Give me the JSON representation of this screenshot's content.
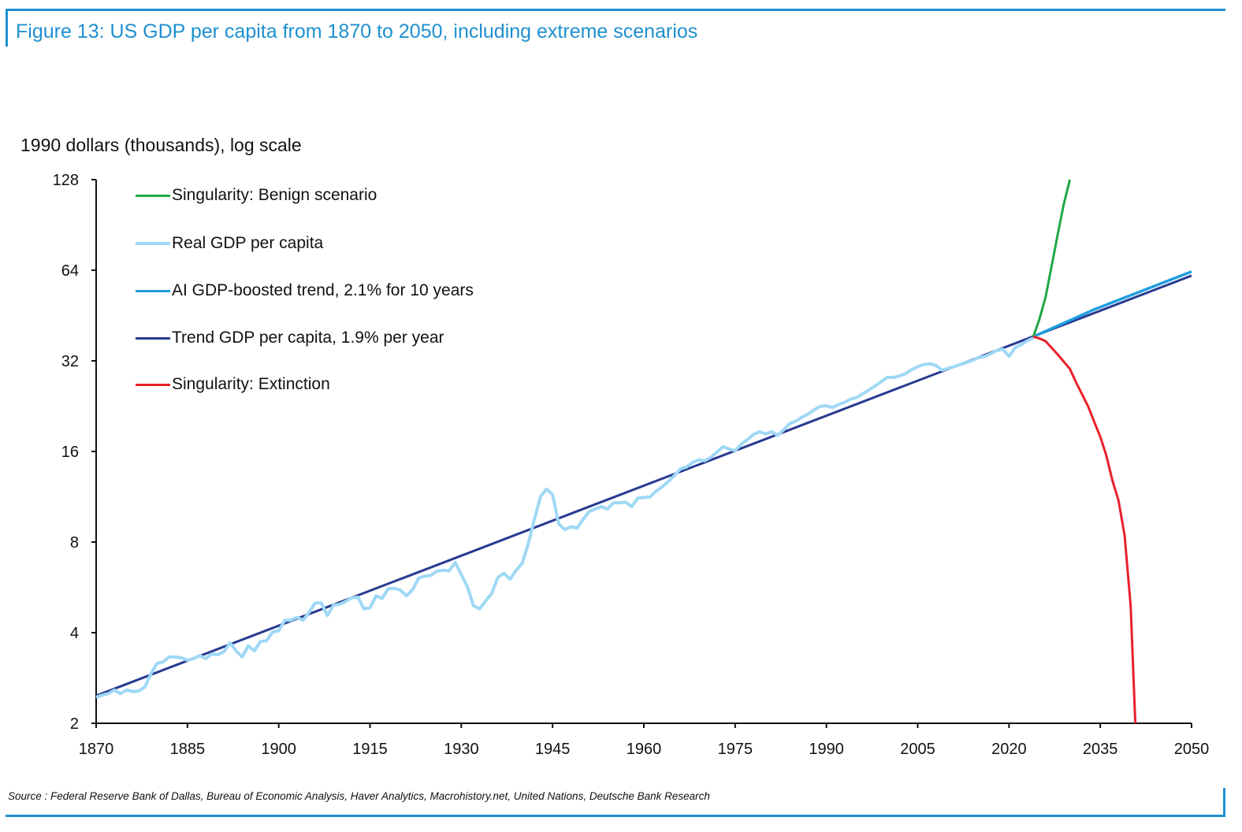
{
  "title": "Figure 13: US GDP per capita from 1870 to 2050, including extreme scenarios",
  "source": "Source : Federal Reserve Bank of Dallas, Bureau of Economic Analysis, Haver Analytics, Macrohistory.net, United Nations, Deutsche Bank Research",
  "colors": {
    "frame": "#1e90d0",
    "title": "#1e90d0"
  },
  "chart_data": {
    "type": "line",
    "title": "Figure 13: US GDP per capita from 1870 to 2050, including extreme scenarios",
    "ylabel": "1990 dollars (thousands), log scale",
    "xlabel": "",
    "y_scale": "log2",
    "ylim": [
      2,
      128
    ],
    "xlim": [
      1870,
      2050
    ],
    "y_ticks": [
      2,
      4,
      8,
      16,
      32,
      64,
      128
    ],
    "x_ticks": [
      1870,
      1885,
      1900,
      1915,
      1930,
      1945,
      1960,
      1975,
      1990,
      2005,
      2020,
      2035,
      2050
    ],
    "grid": false,
    "legend_position": "top-left",
    "series": [
      {
        "name": "Singularity: Benign scenario",
        "color": "#1fa846",
        "x": [
          2024,
          2025,
          2026,
          2027,
          2028,
          2029,
          2030
        ],
        "y": [
          38.5,
          44,
          52,
          66,
          84,
          106,
          128
        ]
      },
      {
        "name": "Real GDP per capita",
        "color": "#9fd8f6",
        "x": [
          1870,
          1871,
          1872,
          1873,
          1874,
          1875,
          1876,
          1877,
          1878,
          1879,
          1880,
          1881,
          1882,
          1883,
          1884,
          1885,
          1886,
          1887,
          1888,
          1889,
          1890,
          1891,
          1892,
          1893,
          1894,
          1895,
          1896,
          1897,
          1898,
          1899,
          1900,
          1901,
          1902,
          1903,
          1904,
          1905,
          1906,
          1907,
          1908,
          1909,
          1910,
          1911,
          1912,
          1913,
          1914,
          1915,
          1916,
          1917,
          1918,
          1919,
          1920,
          1921,
          1922,
          1923,
          1924,
          1925,
          1926,
          1927,
          1928,
          1929,
          1930,
          1931,
          1932,
          1933,
          1934,
          1935,
          1936,
          1937,
          1938,
          1939,
          1940,
          1941,
          1942,
          1943,
          1944,
          1945,
          1946,
          1947,
          1948,
          1949,
          1950,
          1951,
          1952,
          1953,
          1954,
          1955,
          1956,
          1957,
          1958,
          1959,
          1960,
          1961,
          1962,
          1963,
          1964,
          1965,
          1966,
          1967,
          1968,
          1969,
          1970,
          1971,
          1972,
          1973,
          1974,
          1975,
          1976,
          1977,
          1978,
          1979,
          1980,
          1981,
          1982,
          1983,
          1984,
          1985,
          1986,
          1987,
          1988,
          1989,
          1990,
          1991,
          1992,
          1993,
          1994,
          1995,
          1996,
          1997,
          1998,
          1999,
          2000,
          2001,
          2002,
          2003,
          2004,
          2005,
          2006,
          2007,
          2008,
          2009,
          2010,
          2011,
          2012,
          2013,
          2014,
          2015,
          2016,
          2017,
          2018,
          2019,
          2020,
          2021,
          2022,
          2023,
          2024
        ],
        "y": [
          2.44,
          2.48,
          2.51,
          2.58,
          2.51,
          2.58,
          2.55,
          2.56,
          2.64,
          2.92,
          3.16,
          3.2,
          3.32,
          3.32,
          3.3,
          3.24,
          3.28,
          3.36,
          3.28,
          3.4,
          3.38,
          3.46,
          3.7,
          3.48,
          3.32,
          3.62,
          3.48,
          3.74,
          3.76,
          4.02,
          4.06,
          4.4,
          4.4,
          4.5,
          4.4,
          4.68,
          5.02,
          5.02,
          4.56,
          4.94,
          4.97,
          5.08,
          5.22,
          5.25,
          4.8,
          4.84,
          5.3,
          5.2,
          5.6,
          5.62,
          5.54,
          5.3,
          5.56,
          6.08,
          6.16,
          6.2,
          6.4,
          6.45,
          6.42,
          6.84,
          6.24,
          5.68,
          4.92,
          4.8,
          5.1,
          5.4,
          6.1,
          6.3,
          6.02,
          6.44,
          6.8,
          7.88,
          9.5,
          11.3,
          12.0,
          11.5,
          9.2,
          8.8,
          9.0,
          8.9,
          9.5,
          10.1,
          10.3,
          10.5,
          10.3,
          10.8,
          10.8,
          10.85,
          10.5,
          11.2,
          11.25,
          11.3,
          11.8,
          12.2,
          12.7,
          13.3,
          14.0,
          14.2,
          14.7,
          15.0,
          14.9,
          15.3,
          15.9,
          16.6,
          16.3,
          16.1,
          16.9,
          17.5,
          18.2,
          18.6,
          18.3,
          18.6,
          18.1,
          18.9,
          19.8,
          20.2,
          20.8,
          21.3,
          22.0,
          22.6,
          22.7,
          22.4,
          22.9,
          23.3,
          23.9,
          24.2,
          24.9,
          25.6,
          26.4,
          27.3,
          28.2,
          28.2,
          28.5,
          29.0,
          29.9,
          30.6,
          31.1,
          31.3,
          30.9,
          29.8,
          30.2,
          30.6,
          31.1,
          31.6,
          32.1,
          32.8,
          33.1,
          33.8,
          34.6,
          35.0,
          33.1,
          35.4,
          36.2,
          37.3,
          38.1
        ]
      },
      {
        "name": "AI GDP-boosted trend, 2.1% for 10 years",
        "color": "#1e9fe0",
        "x": [
          2024,
          2034,
          2050
        ],
        "y": [
          38.5,
          47.4,
          63.3
        ]
      },
      {
        "name": "Trend GDP per capita, 1.9% per year",
        "color": "#283a8f",
        "x": [
          1870,
          2050
        ],
        "y": [
          2.47,
          61.4
        ]
      },
      {
        "name": "Singularity: Extinction",
        "color": "#e8202a",
        "x": [
          2024,
          2025,
          2026,
          2028,
          2030,
          2031,
          2032,
          2033,
          2034,
          2035,
          2036,
          2037,
          2038,
          2039,
          2040,
          2040.75
        ],
        "y": [
          38.5,
          38.0,
          37.2,
          33.6,
          30.1,
          27.2,
          24.8,
          22.6,
          20.1,
          17.9,
          15.5,
          12.8,
          11.0,
          8.4,
          4.88,
          2.0
        ]
      }
    ]
  }
}
